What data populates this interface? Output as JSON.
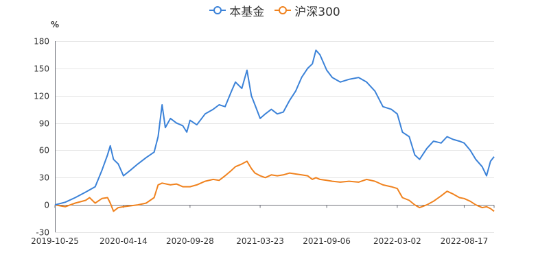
{
  "chart_data": {
    "type": "line",
    "unit_label": "%",
    "ylim": [
      -30,
      180
    ],
    "yticks": [
      -30,
      0,
      30,
      60,
      90,
      120,
      150,
      180
    ],
    "xtick_labels": [
      "2019-10-25",
      "2020-04-14",
      "2020-09-28",
      "2021-03-23",
      "2021-09-06",
      "2022-03-02",
      "2022-08-17"
    ],
    "x_range": [
      "2019-10-25",
      "2022-10-31"
    ],
    "legend_position": "top-center",
    "series": [
      {
        "name": "本基金",
        "color": "#3b82d8",
        "points": [
          [
            "2019-10-25",
            0
          ],
          [
            "2019-11-20",
            3
          ],
          [
            "2019-12-15",
            8
          ],
          [
            "2020-01-10",
            14
          ],
          [
            "2020-02-03",
            20
          ],
          [
            "2020-02-20",
            38
          ],
          [
            "2020-03-05",
            55
          ],
          [
            "2020-03-12",
            65
          ],
          [
            "2020-03-20",
            50
          ],
          [
            "2020-04-01",
            45
          ],
          [
            "2020-04-14",
            32
          ],
          [
            "2020-05-01",
            38
          ],
          [
            "2020-05-20",
            45
          ],
          [
            "2020-06-10",
            52
          ],
          [
            "2020-06-30",
            58
          ],
          [
            "2020-07-10",
            75
          ],
          [
            "2020-07-20",
            110
          ],
          [
            "2020-07-28",
            85
          ],
          [
            "2020-08-10",
            95
          ],
          [
            "2020-08-25",
            90
          ],
          [
            "2020-09-10",
            87
          ],
          [
            "2020-09-20",
            80
          ],
          [
            "2020-09-28",
            93
          ],
          [
            "2020-10-15",
            88
          ],
          [
            "2020-11-05",
            100
          ],
          [
            "2020-11-25",
            105
          ],
          [
            "2020-12-10",
            110
          ],
          [
            "2020-12-25",
            108
          ],
          [
            "2021-01-10",
            125
          ],
          [
            "2021-01-20",
            135
          ],
          [
            "2021-02-05",
            128
          ],
          [
            "2021-02-18",
            148
          ],
          [
            "2021-03-01",
            120
          ],
          [
            "2021-03-10",
            110
          ],
          [
            "2021-03-23",
            95
          ],
          [
            "2021-04-05",
            100
          ],
          [
            "2021-04-20",
            105
          ],
          [
            "2021-05-05",
            100
          ],
          [
            "2021-05-20",
            102
          ],
          [
            "2021-06-05",
            115
          ],
          [
            "2021-06-20",
            125
          ],
          [
            "2021-07-05",
            140
          ],
          [
            "2021-07-20",
            150
          ],
          [
            "2021-08-01",
            155
          ],
          [
            "2021-08-10",
            170
          ],
          [
            "2021-08-20",
            165
          ],
          [
            "2021-09-06",
            148
          ],
          [
            "2021-09-20",
            140
          ],
          [
            "2021-10-10",
            135
          ],
          [
            "2021-11-01",
            138
          ],
          [
            "2021-11-25",
            140
          ],
          [
            "2021-12-15",
            135
          ],
          [
            "2022-01-05",
            125
          ],
          [
            "2022-01-25",
            108
          ],
          [
            "2022-02-15",
            105
          ],
          [
            "2022-03-02",
            100
          ],
          [
            "2022-03-15",
            80
          ],
          [
            "2022-04-01",
            75
          ],
          [
            "2022-04-15",
            55
          ],
          [
            "2022-04-27",
            50
          ],
          [
            "2022-05-15",
            62
          ],
          [
            "2022-06-01",
            70
          ],
          [
            "2022-06-20",
            68
          ],
          [
            "2022-07-05",
            75
          ],
          [
            "2022-07-20",
            72
          ],
          [
            "2022-08-05",
            70
          ],
          [
            "2022-08-17",
            68
          ],
          [
            "2022-09-01",
            60
          ],
          [
            "2022-09-15",
            50
          ],
          [
            "2022-10-01",
            42
          ],
          [
            "2022-10-12",
            32
          ],
          [
            "2022-10-22",
            48
          ],
          [
            "2022-10-31",
            53
          ]
        ]
      },
      {
        "name": "沪深300",
        "color": "#f0821e",
        "points": [
          [
            "2019-10-25",
            0
          ],
          [
            "2019-11-20",
            -2
          ],
          [
            "2019-12-15",
            2
          ],
          [
            "2020-01-10",
            5
          ],
          [
            "2020-01-20",
            8
          ],
          [
            "2020-02-03",
            2
          ],
          [
            "2020-02-20",
            7
          ],
          [
            "2020-03-05",
            8
          ],
          [
            "2020-03-12",
            2
          ],
          [
            "2020-03-20",
            -7
          ],
          [
            "2020-04-01",
            -3
          ],
          [
            "2020-04-14",
            -2
          ],
          [
            "2020-05-01",
            -1
          ],
          [
            "2020-05-20",
            0
          ],
          [
            "2020-06-10",
            2
          ],
          [
            "2020-06-30",
            8
          ],
          [
            "2020-07-10",
            22
          ],
          [
            "2020-07-20",
            24
          ],
          [
            "2020-08-10",
            22
          ],
          [
            "2020-08-25",
            23
          ],
          [
            "2020-09-10",
            20
          ],
          [
            "2020-09-28",
            20
          ],
          [
            "2020-10-15",
            22
          ],
          [
            "2020-11-05",
            26
          ],
          [
            "2020-11-25",
            28
          ],
          [
            "2020-12-10",
            27
          ],
          [
            "2020-12-25",
            32
          ],
          [
            "2021-01-10",
            38
          ],
          [
            "2021-01-20",
            42
          ],
          [
            "2021-02-05",
            45
          ],
          [
            "2021-02-18",
            48
          ],
          [
            "2021-03-01",
            40
          ],
          [
            "2021-03-10",
            35
          ],
          [
            "2021-03-23",
            32
          ],
          [
            "2021-04-05",
            30
          ],
          [
            "2021-04-20",
            33
          ],
          [
            "2021-05-05",
            32
          ],
          [
            "2021-05-20",
            33
          ],
          [
            "2021-06-05",
            35
          ],
          [
            "2021-06-20",
            34
          ],
          [
            "2021-07-05",
            33
          ],
          [
            "2021-07-20",
            32
          ],
          [
            "2021-08-01",
            28
          ],
          [
            "2021-08-10",
            30
          ],
          [
            "2021-08-20",
            28
          ],
          [
            "2021-09-06",
            27
          ],
          [
            "2021-09-20",
            26
          ],
          [
            "2021-10-10",
            25
          ],
          [
            "2021-11-01",
            26
          ],
          [
            "2021-11-25",
            25
          ],
          [
            "2021-12-15",
            28
          ],
          [
            "2022-01-05",
            26
          ],
          [
            "2022-01-25",
            22
          ],
          [
            "2022-02-15",
            20
          ],
          [
            "2022-03-02",
            18
          ],
          [
            "2022-03-15",
            8
          ],
          [
            "2022-04-01",
            5
          ],
          [
            "2022-04-15",
            0
          ],
          [
            "2022-04-27",
            -3
          ],
          [
            "2022-05-15",
            0
          ],
          [
            "2022-06-01",
            4
          ],
          [
            "2022-06-20",
            10
          ],
          [
            "2022-07-05",
            15
          ],
          [
            "2022-07-20",
            12
          ],
          [
            "2022-08-05",
            8
          ],
          [
            "2022-08-17",
            7
          ],
          [
            "2022-09-01",
            4
          ],
          [
            "2022-09-15",
            0
          ],
          [
            "2022-10-01",
            -3
          ],
          [
            "2022-10-12",
            -2
          ],
          [
            "2022-10-22",
            -4
          ],
          [
            "2022-10-31",
            -7
          ]
        ]
      }
    ]
  }
}
